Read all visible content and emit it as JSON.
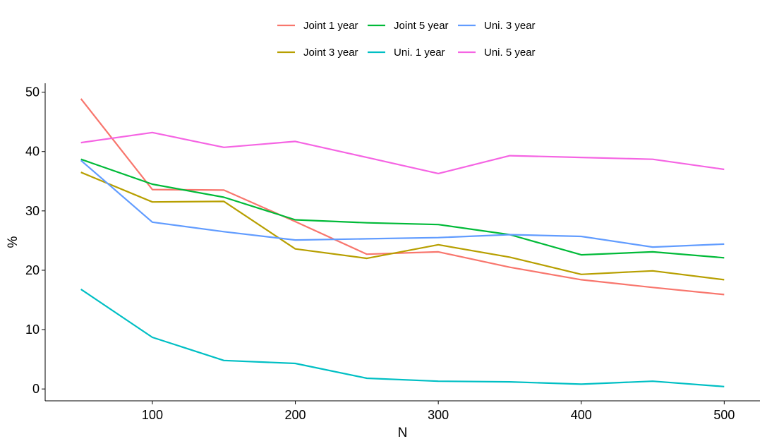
{
  "chart_data": {
    "type": "line",
    "title": "",
    "xlabel": "N",
    "ylabel": "%",
    "xlim": [
      25,
      525
    ],
    "ylim": [
      -2,
      51.5
    ],
    "x_ticks": [
      100,
      200,
      300,
      400,
      500
    ],
    "y_ticks": [
      0,
      10,
      20,
      30,
      40,
      50
    ],
    "grid": false,
    "legend_position": "top",
    "x": [
      50,
      100,
      150,
      200,
      250,
      300,
      350,
      400,
      450,
      500
    ],
    "series": [
      {
        "name": "Joint 1 year",
        "color": "#F8766D",
        "values": [
          48.9,
          33.6,
          33.5,
          28.2,
          22.7,
          23.1,
          20.5,
          18.4,
          17.1,
          15.9
        ]
      },
      {
        "name": "Joint 3 year",
        "color": "#B79F00",
        "values": [
          36.5,
          31.5,
          31.6,
          23.6,
          22.0,
          24.3,
          22.2,
          19.3,
          19.9,
          18.4
        ]
      },
      {
        "name": "Joint 5 year",
        "color": "#00BA38",
        "values": [
          38.7,
          34.5,
          32.3,
          28.5,
          28.0,
          27.7,
          26.0,
          22.6,
          23.1,
          22.1
        ]
      },
      {
        "name": "Uni. 1 year",
        "color": "#00BFC4",
        "values": [
          16.8,
          8.7,
          4.8,
          4.3,
          1.8,
          1.3,
          1.2,
          0.8,
          1.3,
          0.4
        ]
      },
      {
        "name": "Uni. 3 year",
        "color": "#619CFF",
        "values": [
          38.5,
          28.1,
          26.5,
          25.1,
          25.3,
          25.5,
          26.0,
          25.7,
          23.9,
          24.4
        ]
      },
      {
        "name": "Uni. 5 year",
        "color": "#F564E3",
        "values": [
          41.5,
          43.2,
          40.7,
          41.7,
          39.0,
          36.3,
          39.3,
          39.0,
          38.7,
          37.0
        ]
      }
    ],
    "legend_order": [
      "Joint 1 year",
      "Joint 5 year",
      "Uni. 3 year",
      "Joint 3 year",
      "Uni. 1 year",
      "Uni. 5 year"
    ]
  }
}
